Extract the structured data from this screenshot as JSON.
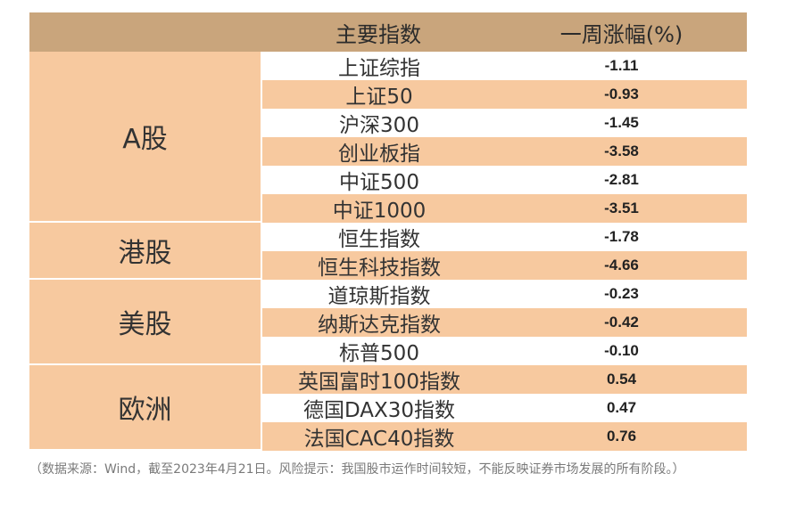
{
  "header": {
    "col_name": "主要指数",
    "col_change": "一周涨幅(%)"
  },
  "groups": [
    {
      "label": "A股",
      "rows": [
        {
          "name": "上证综指",
          "change": "-1.11"
        },
        {
          "name": "上证50",
          "change": "-0.93"
        },
        {
          "name": "沪深300",
          "change": "-1.45"
        },
        {
          "name": "创业板指",
          "change": "-3.58"
        },
        {
          "name": "中证500",
          "change": "-2.81"
        },
        {
          "name": "中证1000",
          "change": "-3.51"
        }
      ]
    },
    {
      "label": "港股",
      "rows": [
        {
          "name": "恒生指数",
          "change": "-1.78"
        },
        {
          "name": "恒生科技指数",
          "change": "-4.66"
        }
      ]
    },
    {
      "label": "美股",
      "rows": [
        {
          "name": "道琼斯指数",
          "change": "-0.23"
        },
        {
          "name": "纳斯达克指数",
          "change": "-0.42"
        },
        {
          "name": "标普500",
          "change": "-0.10"
        }
      ]
    },
    {
      "label": "欧洲",
      "rows": [
        {
          "name": "英国富时100指数",
          "change": "0.54"
        },
        {
          "name": "德国DAX30指数",
          "change": "0.47"
        },
        {
          "name": "法国CAC40指数",
          "change": "0.76"
        }
      ]
    }
  ],
  "note": "（数据来源：Wind，截至2023年4月21日。风险提示：我国股市运作时间较短，不能反映证券市场发展的所有阶段。）",
  "colors": {
    "header": "#c9a57c",
    "band": "#f7c99f",
    "white": "#ffffff"
  }
}
